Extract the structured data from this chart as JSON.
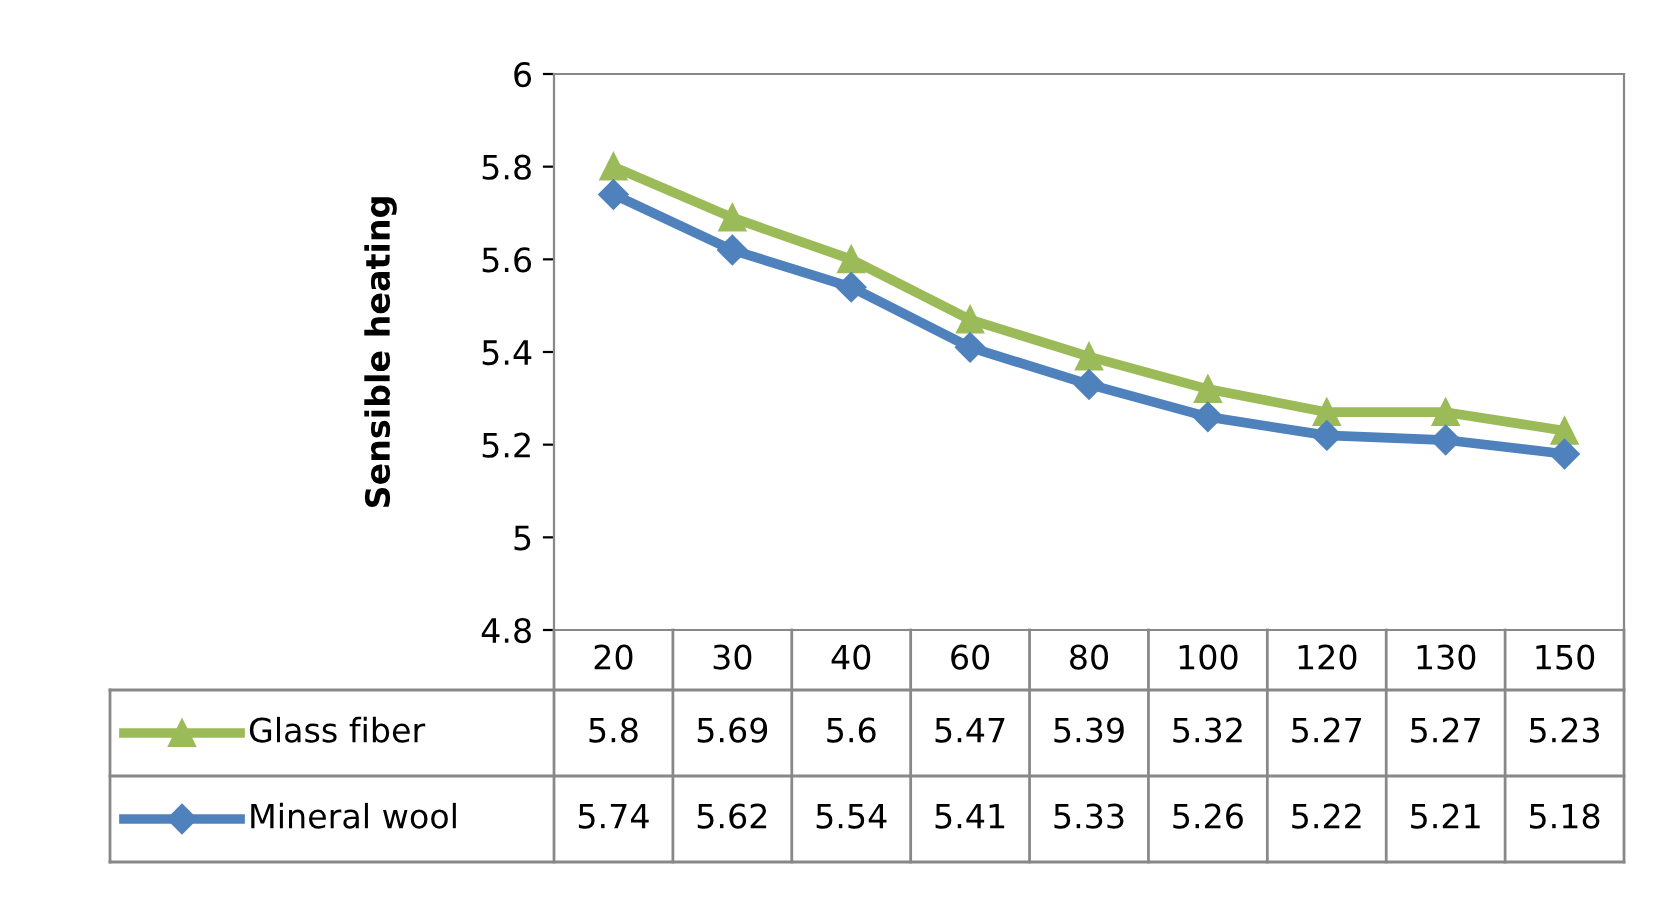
{
  "chart_data": {
    "type": "line",
    "ylabel": "Sensible heating",
    "categories": [
      "20",
      "30",
      "40",
      "60",
      "80",
      "100",
      "120",
      "130",
      "150"
    ],
    "series": [
      {
        "name": "Glass fiber",
        "color": "#9bbb59",
        "marker": "triangle",
        "values": [
          5.8,
          5.69,
          5.6,
          5.47,
          5.39,
          5.32,
          5.27,
          5.27,
          5.23
        ]
      },
      {
        "name": "Mineral wool",
        "color": "#4f81bd",
        "marker": "diamond",
        "values": [
          5.74,
          5.62,
          5.54,
          5.41,
          5.33,
          5.26,
          5.22,
          5.21,
          5.18
        ]
      }
    ],
    "ylim": [
      4.8,
      6
    ],
    "yticks": [
      4.8,
      5,
      5.2,
      5.4,
      5.6,
      5.8,
      6
    ],
    "grid": false,
    "legend": "bottom",
    "data_labels": true,
    "line_style": "solid"
  }
}
